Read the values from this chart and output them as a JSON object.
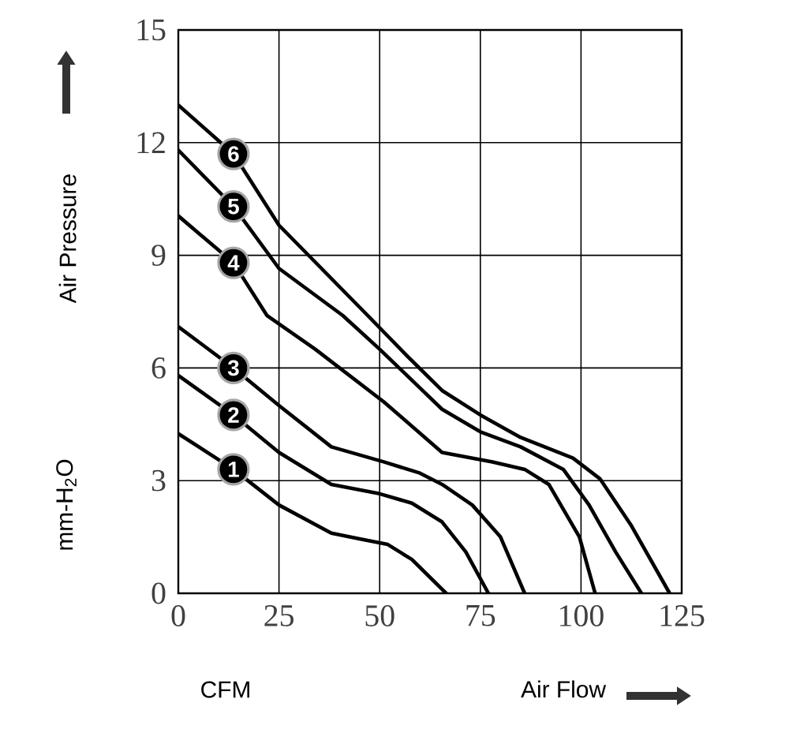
{
  "chart_data": {
    "type": "line",
    "xlabel": "Air Flow",
    "ylabel": "Air Pressure",
    "annotations": [
      "CFM",
      "mm-H$_{2}$O"
    ],
    "xlim": [
      0,
      125
    ],
    "ylim": [
      0,
      15
    ],
    "xticks": [
      0,
      25,
      50,
      75,
      100,
      125
    ],
    "yticks": [
      0,
      3,
      6,
      9,
      12,
      15
    ],
    "grid": true,
    "series": [
      {
        "name": "1",
        "color": "#000000",
        "x": [
          0,
          13.7,
          25,
          38,
          45,
          52,
          58,
          66.5
        ],
        "values": [
          4.25,
          3.3,
          2.35,
          1.6,
          1.45,
          1.3,
          0.9,
          0
        ]
      },
      {
        "name": "2",
        "color": "#000000",
        "x": [
          0,
          13.7,
          25,
          38,
          50,
          58,
          65.5,
          71.4,
          77
        ],
        "values": [
          5.8,
          4.75,
          3.75,
          2.9,
          2.65,
          2.4,
          1.9,
          1.1,
          0
        ]
      },
      {
        "name": "3",
        "color": "#000000",
        "x": [
          0,
          13.7,
          25,
          38,
          51,
          60,
          65.5,
          73,
          80,
          86
        ],
        "values": [
          7.1,
          6.0,
          5.0,
          3.9,
          3.5,
          3.2,
          2.9,
          2.35,
          1.5,
          0
        ]
      },
      {
        "name": "4",
        "color": "#000000",
        "x": [
          0,
          13.7,
          22,
          34,
          51,
          65.5,
          78,
          86,
          92,
          99.6,
          103.5
        ],
        "values": [
          10.05,
          8.8,
          7.4,
          6.5,
          5.1,
          3.75,
          3.5,
          3.3,
          2.9,
          1.5,
          0
        ]
      },
      {
        "name": "5",
        "color": "#000000",
        "x": [
          0,
          13.7,
          25,
          40.8,
          50,
          65.5,
          75,
          85,
          95.6,
          102,
          108.6,
          115
        ],
        "values": [
          11.8,
          10.3,
          8.65,
          7.4,
          6.5,
          4.9,
          4.3,
          3.9,
          3.3,
          2.35,
          1.1,
          0
        ]
      },
      {
        "name": "6",
        "color": "#000000",
        "x": [
          0,
          13.7,
          25,
          47,
          57,
          65.5,
          75,
          85,
          98,
          104.7,
          112.5,
          122
        ],
        "values": [
          13.0,
          11.7,
          9.8,
          7.4,
          6.3,
          5.4,
          4.75,
          4.15,
          3.6,
          3.05,
          1.8,
          0
        ]
      }
    ]
  }
}
